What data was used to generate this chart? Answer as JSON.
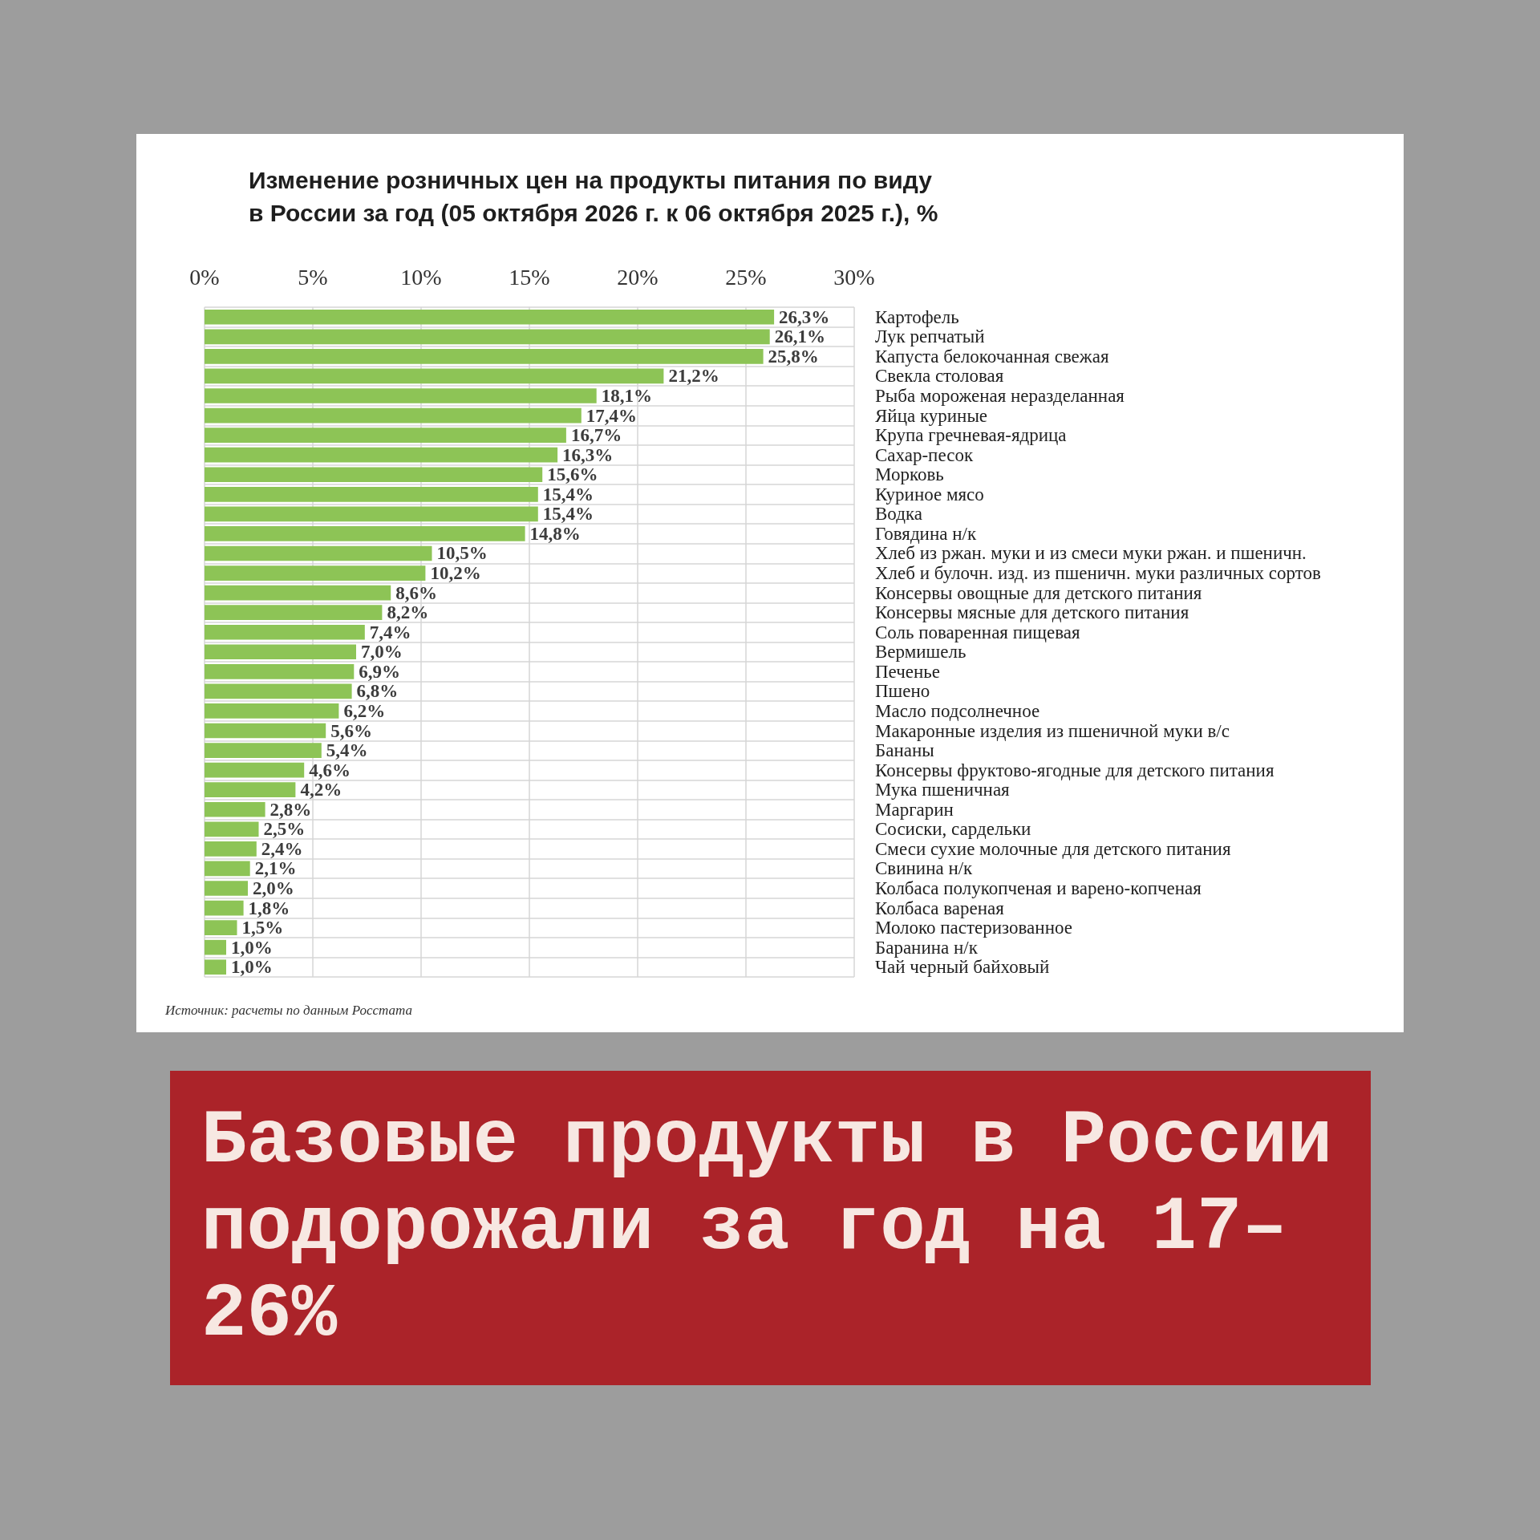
{
  "chart_data": {
    "type": "bar",
    "orientation": "horizontal",
    "title": "Изменение розничных цен на продукты питания по виду\nв России за год (05 октября 2026 г. к 06 октября 2025 г.), %",
    "categories": [
      "Картофель",
      "Лук репчатый",
      "Капуста белокочанная свежая",
      "Свекла столовая",
      "Рыба мороженая неразделанная",
      "Яйца куриные",
      "Крупа гречневая-ядрица",
      "Сахар-песок",
      "Морковь",
      "Куриное мясо",
      "Водка",
      "Говядина н/к",
      "Хлеб из ржан. муки и из смеси муки ржан. и пшеничн.",
      "Хлеб и булочн. изд. из пшеничн. муки различных сортов",
      "Консервы овощные для детского питания",
      "Консервы мясные для детского питания",
      "Соль поваренная пищевая",
      "Вермишель",
      "Печенье",
      "Пшено",
      "Масло подсолнечное",
      "Макаронные изделия из пшеничной муки в/с",
      "Бананы",
      "Консервы фруктово-ягодные для детского питания",
      "Мука пшеничная",
      "Маргарин",
      "Сосиски, сардельки",
      "Смеси сухие молочные для детского питания",
      "Свинина н/к",
      "Колбаса полукопченая и варено-копченая",
      "Колбаса вареная",
      "Молоко пастеризованное",
      "Баранина н/к",
      "Чай черный байховый"
    ],
    "values": [
      26.3,
      26.1,
      25.8,
      21.2,
      18.1,
      17.4,
      16.7,
      16.3,
      15.6,
      15.4,
      15.4,
      14.8,
      10.5,
      10.2,
      8.6,
      8.2,
      7.4,
      7.0,
      6.9,
      6.8,
      6.2,
      5.6,
      5.4,
      4.6,
      4.2,
      2.8,
      2.5,
      2.4,
      2.1,
      2.0,
      1.8,
      1.5,
      1.0,
      1.0
    ],
    "value_labels": [
      "26,3%",
      "26,1%",
      "25,8%",
      "21,2%",
      "18,1%",
      "17,4%",
      "16,7%",
      "16,3%",
      "15,6%",
      "15,4%",
      "15,4%",
      "14,8%",
      "10,5%",
      "10,2%",
      "8,6%",
      "8,2%",
      "7,4%",
      "7,0%",
      "6,9%",
      "6,8%",
      "6,2%",
      "5,6%",
      "5,4%",
      "4,6%",
      "4,2%",
      "2,8%",
      "2,5%",
      "2,4%",
      "2,1%",
      "2,0%",
      "1,8%",
      "1,5%",
      "1,0%",
      "1,0%"
    ],
    "color": "#8dc456",
    "xlim": [
      0,
      30
    ],
    "xticks": [
      {
        "value": 0,
        "label": "0%"
      },
      {
        "value": 5,
        "label": "5%"
      },
      {
        "value": 10,
        "label": "10%"
      },
      {
        "value": 15,
        "label": "15%"
      },
      {
        "value": 20,
        "label": "20%"
      },
      {
        "value": 25,
        "label": "25%"
      },
      {
        "value": 30,
        "label": "30%"
      }
    ],
    "grid": true,
    "annotations": [
      "Источник: расчеты по данным Росстата",
      "Базовые продукты в России подорожали за год на 17–26%"
    ]
  }
}
